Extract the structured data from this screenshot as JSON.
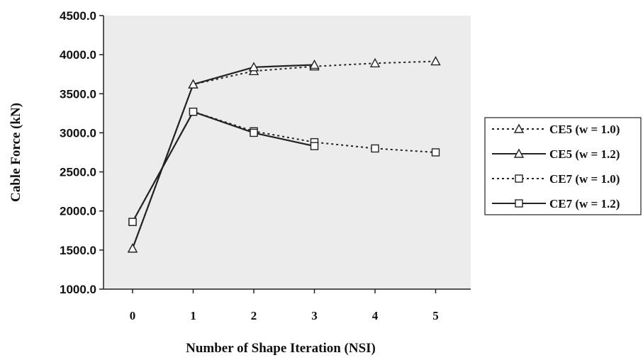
{
  "chart_data": {
    "type": "line",
    "title": "",
    "xlabel": "Number of Shape Iteration (NSI)",
    "ylabel": "Cable Force (kN)",
    "ylim": [
      1000,
      4500
    ],
    "yticks": [
      "1000.0",
      "1500.0",
      "2000.0",
      "2500.0",
      "3000.0",
      "3500.0",
      "4000.0",
      "4500.0"
    ],
    "x": [
      0,
      1,
      2,
      3,
      4,
      5
    ],
    "xticks": [
      "0",
      "1",
      "2",
      "3",
      "4",
      "5"
    ],
    "grid": false,
    "legend_position": "right",
    "series": [
      {
        "name": "CE5 (w = 1.0)",
        "style": "dotted",
        "marker": "triangle",
        "x": [
          0,
          1,
          2,
          3,
          4,
          5
        ],
        "values": [
          1520,
          3620,
          3790,
          3850,
          3890,
          3915
        ]
      },
      {
        "name": "CE5 (w = 1.2)",
        "style": "solid",
        "marker": "triangle",
        "x": [
          0,
          1,
          2,
          3
        ],
        "values": [
          1520,
          3620,
          3840,
          3870
        ]
      },
      {
        "name": "CE7 (w = 1.0)",
        "style": "dotted",
        "marker": "square",
        "x": [
          0,
          1,
          2,
          3,
          4,
          5
        ],
        "values": [
          1860,
          3270,
          3020,
          2880,
          2800,
          2750
        ]
      },
      {
        "name": "CE7 (w = 1.2)",
        "style": "solid",
        "marker": "square",
        "x": [
          0,
          1,
          2,
          3
        ],
        "values": [
          1860,
          3270,
          3000,
          2830
        ]
      }
    ]
  }
}
